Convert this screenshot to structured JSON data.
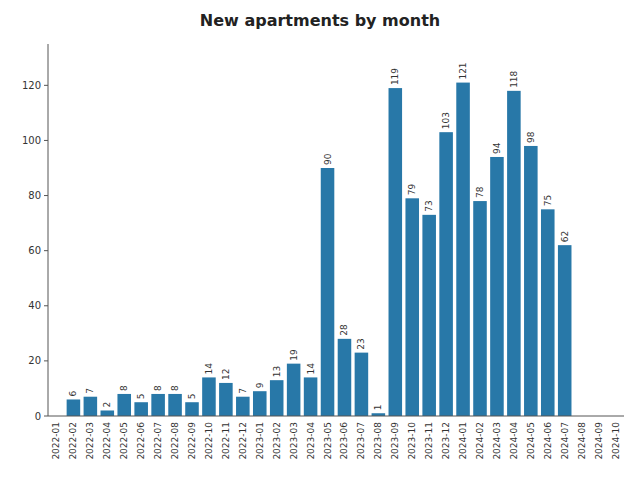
{
  "chart_data": {
    "type": "bar",
    "title": "New apartments by month",
    "categories": [
      "2022-01",
      "2022-02",
      "2022-03",
      "2022-04",
      "2022-05",
      "2022-06",
      "2022-07",
      "2022-08",
      "2022-09",
      "2022-10",
      "2022-11",
      "2022-12",
      "2023-01",
      "2023-02",
      "2023-03",
      "2023-04",
      "2023-05",
      "2023-06",
      "2023-07",
      "2023-08",
      "2023-09",
      "2023-10",
      "2023-11",
      "2023-12",
      "2024-01",
      "2024-02",
      "2024-03",
      "2024-04",
      "2024-05",
      "2024-06",
      "2024-07",
      "2024-08",
      "2024-09",
      "2024-10"
    ],
    "values": [
      0,
      6,
      7,
      2,
      8,
      5,
      8,
      8,
      5,
      14,
      12,
      7,
      9,
      13,
      19,
      14,
      90,
      28,
      23,
      1,
      119,
      79,
      73,
      103,
      121,
      78,
      94,
      118,
      98,
      75,
      62,
      0,
      0,
      0
    ],
    "color": "#2878a8",
    "ylim": [
      0,
      135
    ],
    "yticks": [
      0,
      20,
      40,
      60,
      80,
      100,
      120
    ],
    "grid": false,
    "data_labels": true
  }
}
